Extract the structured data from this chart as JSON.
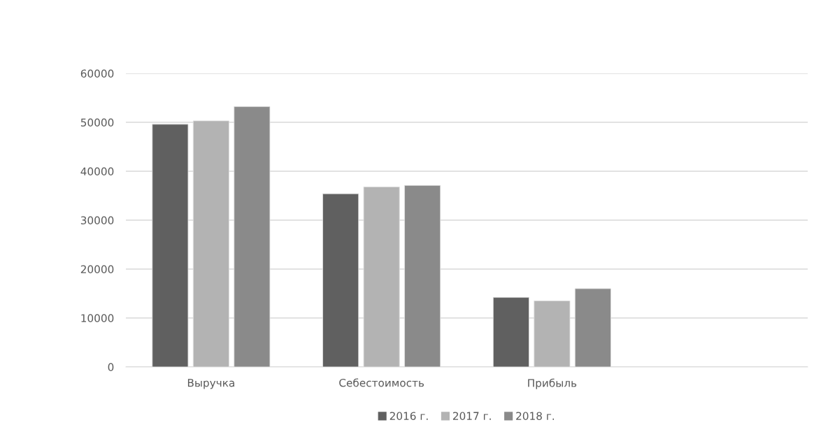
{
  "chart_data": {
    "type": "bar",
    "categories": [
      "Выручка",
      "Себестоимость",
      "Прибыль",
      null
    ],
    "series": [
      {
        "name": "2016 г.",
        "color": "#606060",
        "values": [
          49600,
          35400,
          14200,
          null
        ]
      },
      {
        "name": "2017 г.",
        "color": "#b3b3b3",
        "values": [
          50300,
          36800,
          13500,
          null
        ]
      },
      {
        "name": "2018 г.",
        "color": "#8a8a8a",
        "values": [
          53200,
          37100,
          16000,
          null
        ]
      }
    ],
    "ylim": [
      0,
      60000
    ],
    "yticks": [
      0,
      10000,
      20000,
      30000,
      40000,
      50000,
      60000
    ],
    "grid": "y",
    "legend": "bottom"
  }
}
